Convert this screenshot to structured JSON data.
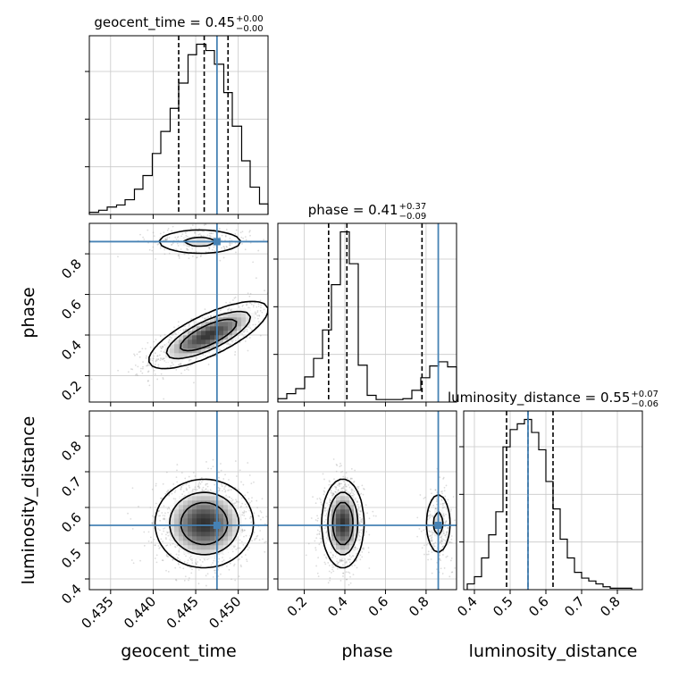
{
  "chart_data": {
    "type": "corner",
    "truth_color": "#4682b4",
    "parameters": [
      {
        "key": "geocent_time",
        "label": "geocent_time",
        "range": [
          0.4325,
          0.4535
        ],
        "truth": 0.4475,
        "quantiles": [
          0.443,
          0.446,
          0.4488
        ],
        "title": {
          "prefix": "geocent_time = 0.45",
          "sup": "+0.00",
          "sub": "−0.00"
        },
        "ticks": [
          0.435,
          0.44,
          0.445,
          0.45
        ],
        "tick_labels": [
          "0.435",
          "0.440",
          "0.445",
          "0.450"
        ]
      },
      {
        "key": "phase",
        "label": "phase",
        "range": [
          0.07,
          0.95
        ],
        "truth": 0.86,
        "quantiles": [
          0.32,
          0.41,
          0.78
        ],
        "title": {
          "prefix": "phase = 0.41",
          "sup": "+0.37",
          "sub": "−0.09"
        },
        "ticks": [
          0.2,
          0.4,
          0.6,
          0.8
        ],
        "tick_labels": [
          "0.2",
          "0.4",
          "0.6",
          "0.8"
        ]
      },
      {
        "key": "luminosity_distance",
        "label": "luminosity_distance",
        "range": [
          0.37,
          0.87
        ],
        "truth": 0.55,
        "quantiles": [
          0.49,
          0.55,
          0.62
        ],
        "title": {
          "prefix": "luminosity_distance = 0.55",
          "sup": "+0.07",
          "sub": "−0.06"
        },
        "ticks": [
          0.4,
          0.5,
          0.6,
          0.7,
          0.8
        ],
        "tick_labels": [
          "0.4",
          "0.5",
          "0.6",
          "0.7",
          "0.8"
        ]
      }
    ],
    "histograms": [
      {
        "param": "geocent_time",
        "edges": [
          0.4325,
          0.4336,
          0.4346,
          0.4357,
          0.4367,
          0.4378,
          0.4388,
          0.4399,
          0.4409,
          0.442,
          0.443,
          0.4441,
          0.4451,
          0.4462,
          0.4472,
          0.4483,
          0.4493,
          0.4504,
          0.4514,
          0.4525,
          0.4535
        ],
        "counts": [
          2,
          4,
          7,
          9,
          14,
          24,
          37,
          58,
          79,
          101,
          125,
          152,
          162,
          156,
          143,
          116,
          84,
          51,
          26,
          10
        ]
      },
      {
        "param": "phase",
        "edges": [
          0.07,
          0.114,
          0.158,
          0.202,
          0.246,
          0.29,
          0.334,
          0.378,
          0.422,
          0.466,
          0.51,
          0.554,
          0.598,
          0.642,
          0.686,
          0.73,
          0.774,
          0.818,
          0.862,
          0.906,
          0.95
        ],
        "counts": [
          4,
          10,
          16,
          30,
          52,
          86,
          140,
          203,
          165,
          44,
          8,
          3,
          3,
          3,
          4,
          14,
          29,
          43,
          48,
          42
        ]
      },
      {
        "param": "luminosity_distance",
        "edges": [
          0.38,
          0.4,
          0.42,
          0.44,
          0.46,
          0.48,
          0.5,
          0.52,
          0.54,
          0.56,
          0.58,
          0.6,
          0.62,
          0.64,
          0.66,
          0.68,
          0.7,
          0.72,
          0.74,
          0.76,
          0.78,
          0.8,
          0.82,
          0.84
        ],
        "counts": [
          4,
          9,
          22,
          38,
          54,
          99,
          111,
          115,
          118,
          109,
          97,
          75,
          56,
          35,
          22,
          12,
          8,
          6,
          4,
          2,
          1,
          1,
          1
        ]
      }
    ],
    "contours_2d": [
      {
        "x": "geocent_time",
        "y": "phase",
        "modes": [
          {
            "weight": 0.8,
            "cx": 0.4465,
            "cy": 0.4,
            "sx": 0.0034,
            "sy": 0.08,
            "rho": 0.75
          },
          {
            "weight": 0.2,
            "cx": 0.4455,
            "cy": 0.86,
            "sx": 0.003,
            "sy": 0.035,
            "rho": 0.0
          }
        ]
      },
      {
        "x": "geocent_time",
        "y": "luminosity_distance",
        "modes": [
          {
            "weight": 1.0,
            "cx": 0.446,
            "cy": 0.555,
            "sx": 0.0028,
            "sy": 0.06,
            "rho": 0.0
          }
        ]
      },
      {
        "x": "phase",
        "y": "luminosity_distance",
        "modes": [
          {
            "weight": 0.8,
            "cx": 0.39,
            "cy": 0.555,
            "sx": 0.05,
            "sy": 0.06,
            "rho": 0.0
          },
          {
            "weight": 0.2,
            "cx": 0.86,
            "cy": 0.555,
            "sx": 0.035,
            "sy": 0.05,
            "rho": 0.0
          }
        ]
      }
    ]
  }
}
